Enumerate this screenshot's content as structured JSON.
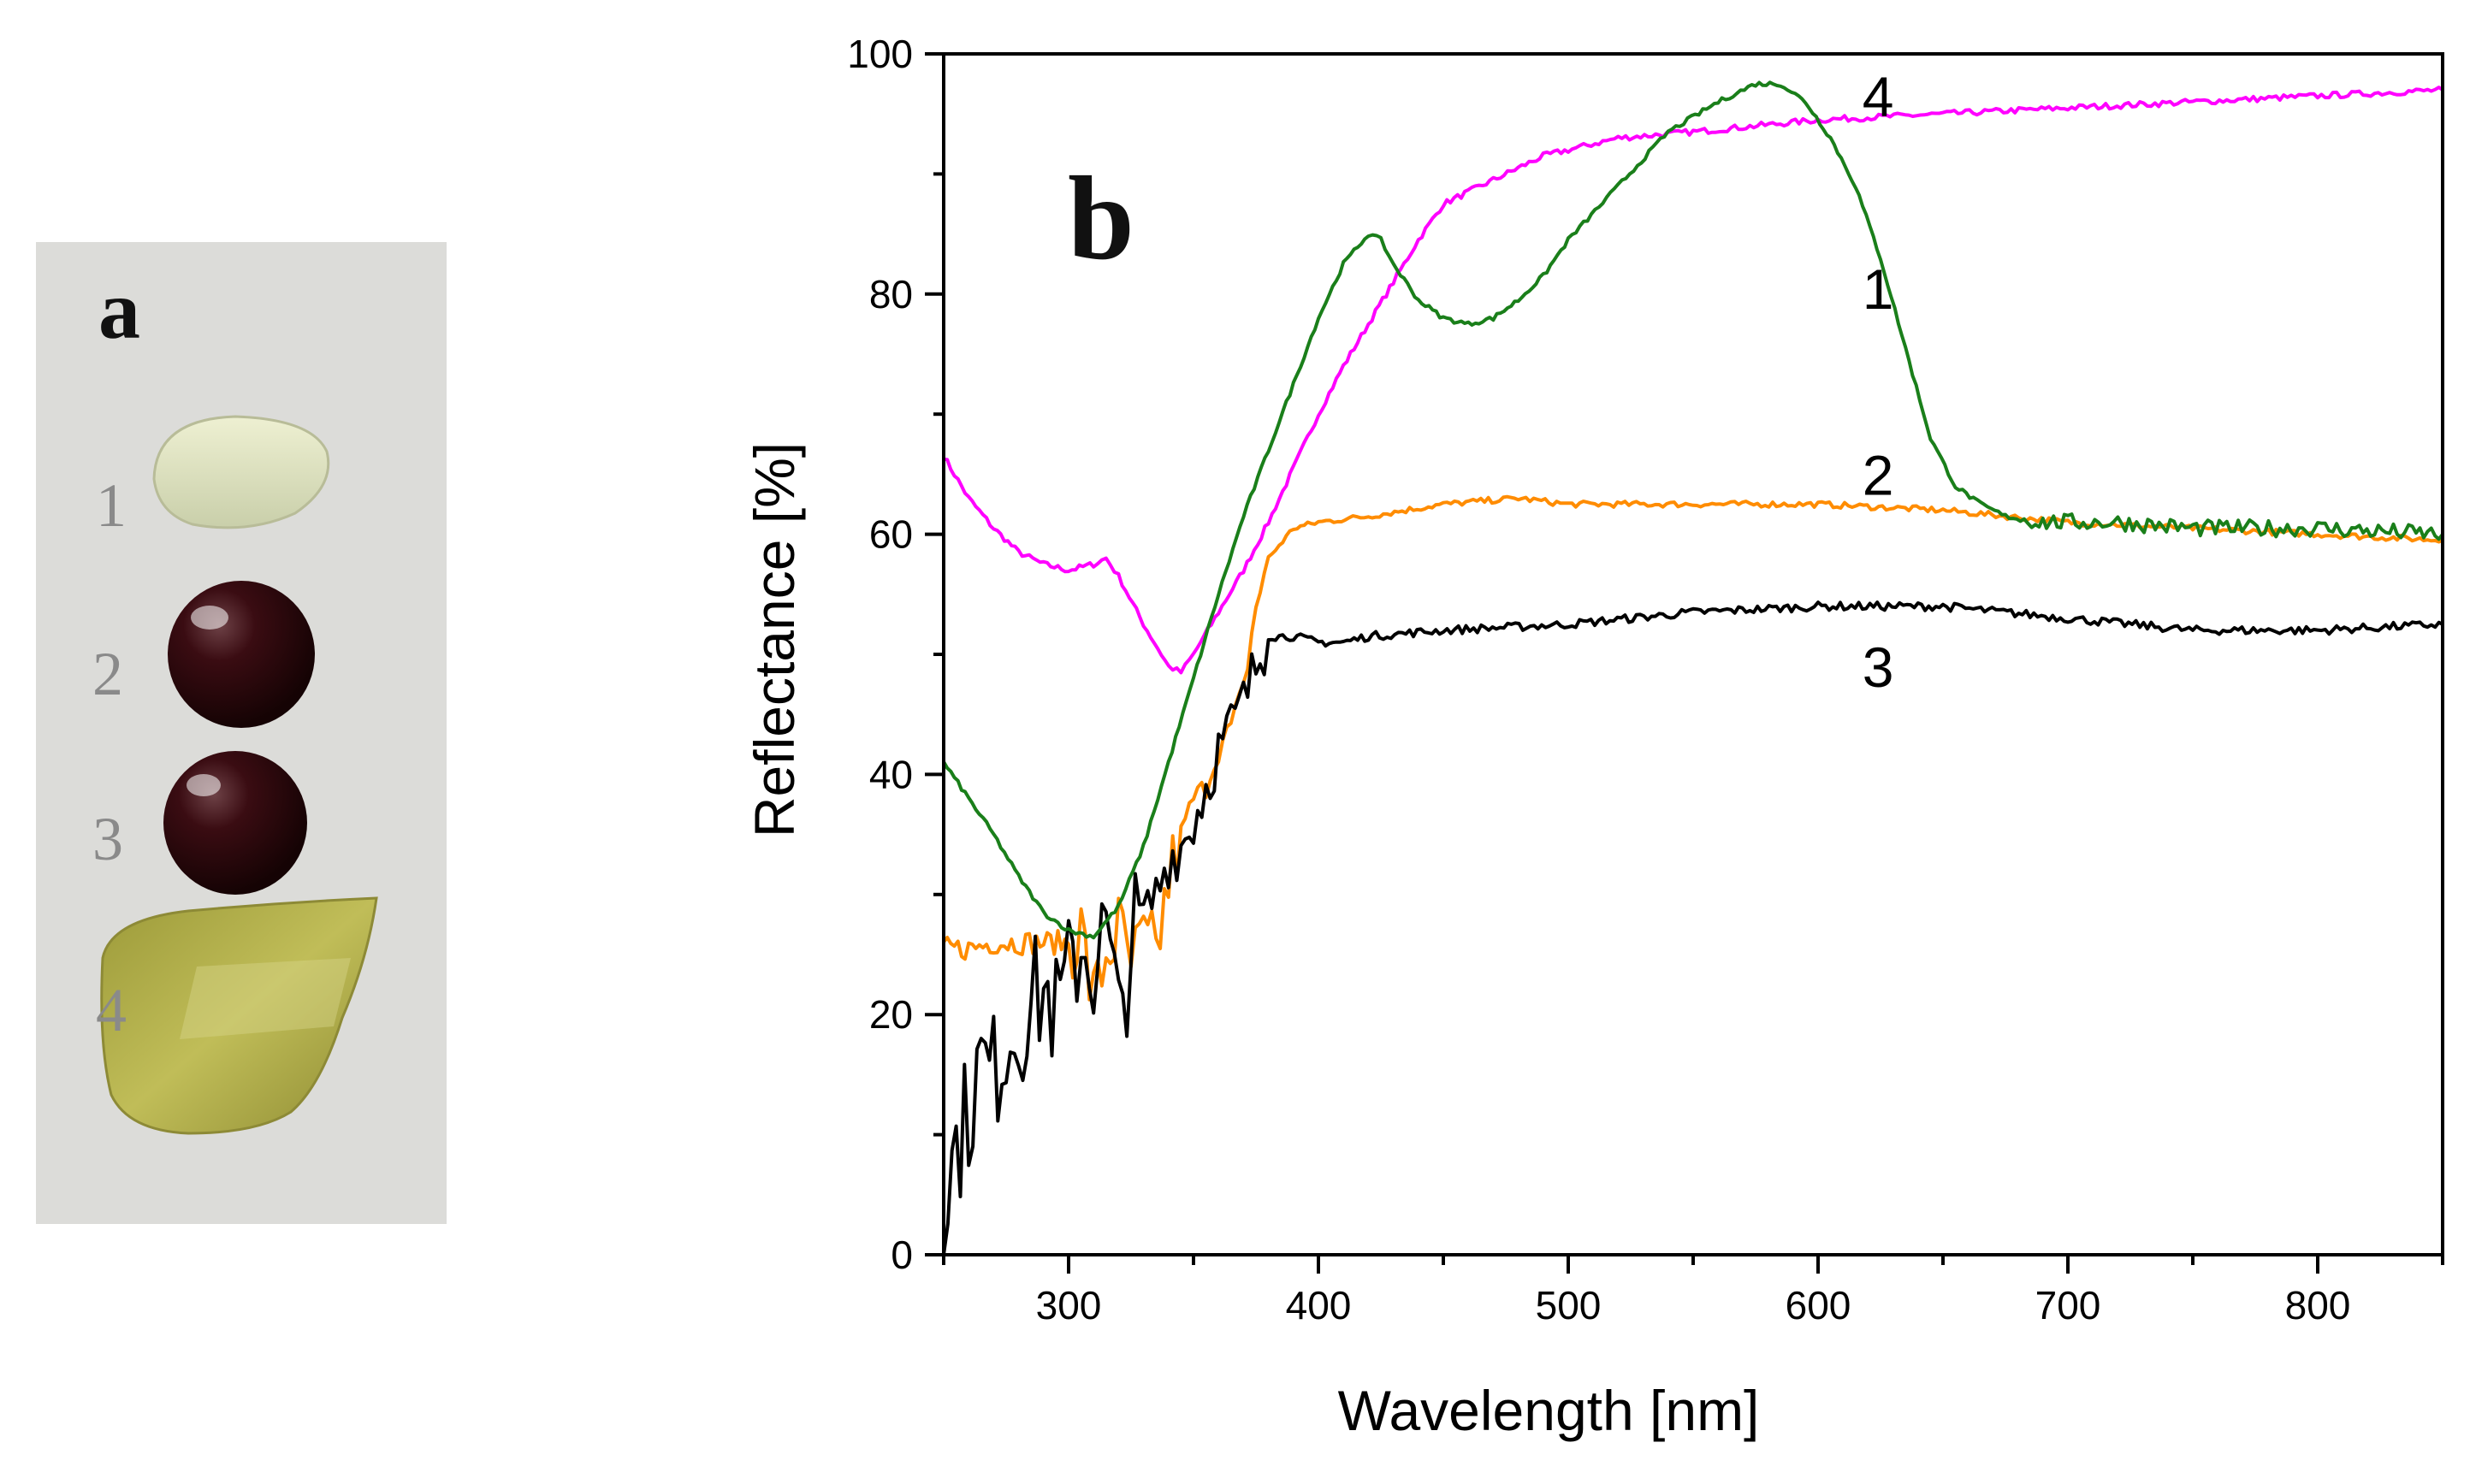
{
  "panel_a": {
    "letter": "a",
    "samples": [
      {
        "label": "1",
        "description": "pale transparent glass drop"
      },
      {
        "label": "2",
        "description": "dark red glass bead"
      },
      {
        "label": "3",
        "description": "dark red glass bead"
      },
      {
        "label": "4",
        "description": "yellow-green glass film"
      }
    ],
    "colors": {
      "background": "#d9d9d6",
      "sample1": "#dfe3c4",
      "sample2": "#2b0a0c",
      "sample3": "#200709",
      "sample4": "#b9b74a"
    }
  },
  "chart_data": {
    "type": "line",
    "panel_letter": "b",
    "title": "",
    "xlabel": "Wavelength [nm]",
    "ylabel": "Reflectance [%]",
    "xlim": [
      250,
      850
    ],
    "ylim": [
      0,
      100
    ],
    "xticks": [
      300,
      400,
      500,
      600,
      700,
      800
    ],
    "yticks": [
      0,
      20,
      40,
      60,
      80,
      100
    ],
    "grid": false,
    "series": [
      {
        "name": "1",
        "color": "#ff00ff",
        "x": [
          250,
          260,
          270,
          280,
          290,
          300,
          310,
          315,
          320,
          330,
          340,
          345,
          350,
          360,
          370,
          380,
          390,
          400,
          410,
          420,
          430,
          440,
          450,
          460,
          470,
          480,
          490,
          500,
          520,
          550,
          600,
          650,
          700,
          750,
          800,
          850
        ],
        "y": [
          66.5,
          63,
          60.5,
          58.5,
          57.5,
          57,
          57.5,
          58,
          56.5,
          52.5,
          49,
          48.5,
          50,
          53.5,
          57,
          61,
          65.5,
          70,
          74,
          77.5,
          81,
          84.5,
          87.5,
          88.5,
          89.5,
          90.5,
          91.5,
          92,
          93,
          93.5,
          94.5,
          95,
          95.5,
          96,
          96.5,
          97
        ]
      },
      {
        "name": "2",
        "color": "#ff8c00",
        "x": [
          250,
          260,
          270,
          280,
          290,
          300,
          305,
          310,
          315,
          320,
          325,
          330,
          335,
          340,
          345,
          350,
          355,
          360,
          365,
          370,
          375,
          380,
          390,
          400,
          420,
          450,
          480,
          500,
          550,
          600,
          650,
          700,
          750,
          800,
          850
        ],
        "y": [
          25.5,
          25.5,
          26,
          26,
          26,
          26,
          27,
          21,
          25,
          27,
          24,
          26,
          25,
          31,
          35,
          38,
          39,
          42,
          44,
          47,
          54,
          58,
          60.5,
          61,
          61.5,
          62.5,
          63,
          62.5,
          62.5,
          62.5,
          62,
          61,
          60.5,
          60,
          59.5
        ]
      },
      {
        "name": "3",
        "color": "#000000",
        "x": [
          250,
          255,
          260,
          265,
          270,
          275,
          280,
          285,
          290,
          295,
          300,
          305,
          310,
          315,
          320,
          325,
          330,
          335,
          340,
          345,
          350,
          355,
          360,
          365,
          370,
          375,
          380,
          390,
          400,
          410,
          420,
          450,
          500,
          550,
          600,
          640,
          650,
          700,
          750,
          800,
          850
        ],
        "y": [
          4,
          9,
          12,
          16,
          15,
          18,
          19,
          21,
          22,
          20,
          23,
          26,
          24,
          27,
          19,
          26,
          28,
          30,
          33,
          34,
          36,
          39,
          42,
          44,
          46,
          49,
          51.5,
          51.5,
          51,
          51,
          51.5,
          52,
          52.5,
          53.5,
          54,
          54,
          54,
          53,
          52,
          52,
          52.5
        ]
      },
      {
        "name": "4",
        "color": "#1a7f1a",
        "x": [
          250,
          260,
          270,
          280,
          290,
          300,
          310,
          320,
          330,
          340,
          350,
          360,
          370,
          380,
          390,
          400,
          410,
          420,
          425,
          430,
          440,
          450,
          460,
          470,
          480,
          490,
          500,
          520,
          540,
          560,
          575,
          585,
          595,
          605,
          615,
          625,
          635,
          645,
          655,
          665,
          675,
          690,
          700,
          720,
          750,
          800,
          850
        ],
        "y": [
          41,
          38,
          35,
          31.5,
          28.5,
          27,
          26.5,
          29,
          34,
          41,
          48,
          55,
          61.5,
          67,
          72.5,
          78,
          82.5,
          85,
          84.5,
          82.5,
          79.5,
          78,
          77.5,
          78,
          79.5,
          81.5,
          84.5,
          89,
          93.5,
          96,
          97.5,
          97.5,
          96,
          93,
          89,
          83,
          75.5,
          68,
          64,
          62.5,
          61.5,
          61,
          61,
          61,
          60.5,
          60.5,
          60
        ]
      }
    ],
    "annotations": [
      {
        "text": "4",
        "x": 624,
        "y": 96.5
      },
      {
        "text": "1",
        "x": 624,
        "y": 80.5
      },
      {
        "text": "2",
        "x": 624,
        "y": 65
      },
      {
        "text": "3",
        "x": 624,
        "y": 49
      }
    ]
  }
}
